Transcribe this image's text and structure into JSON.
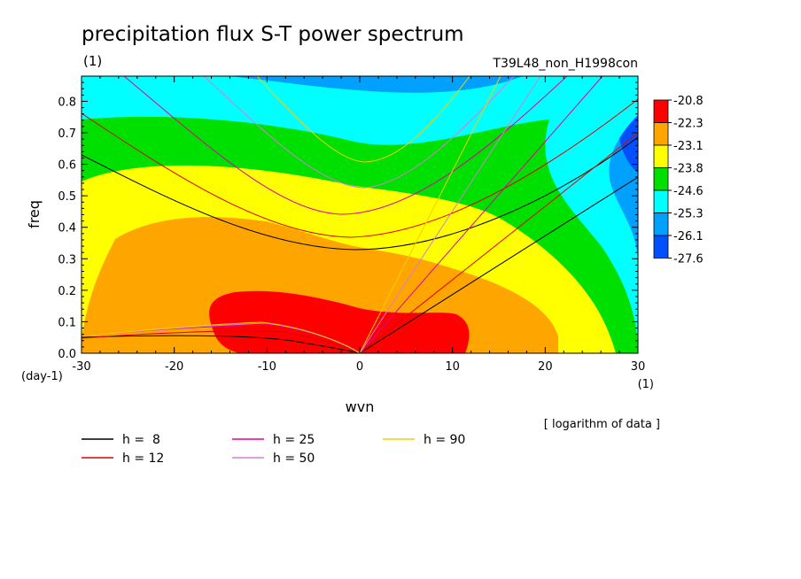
{
  "chart_data": {
    "type": "heatmap",
    "title": "precipitation flux S-T power spectrum",
    "units_left": "(1)",
    "experiment": "T39L48_non_H1998con",
    "xlabel": "wvn",
    "ylabel": "freq",
    "x_unit_label": "(1)",
    "y_unit_label": "(day-1)",
    "xlim": [
      -30,
      30
    ],
    "ylim": [
      0,
      0.88
    ],
    "xticks": [
      -30,
      -20,
      -10,
      0,
      10,
      20,
      30
    ],
    "xtick_labels": [
      "-30",
      "-20",
      "-10",
      "0",
      "10",
      "20",
      "30"
    ],
    "yticks": [
      0.0,
      0.1,
      0.2,
      0.3,
      0.4,
      0.5,
      0.6,
      0.7,
      0.8
    ],
    "ytick_labels": [
      "0.0",
      "0.1",
      "0.2",
      "0.3",
      "0.4",
      "0.5",
      "0.6",
      "0.7",
      "0.8"
    ],
    "colorbar": {
      "levels": [
        "-20.8",
        "-22.3",
        "-23.1",
        "-23.8",
        "-24.6",
        "-25.3",
        "-26.1",
        "-27.6"
      ],
      "colors": [
        "#ff0000",
        "#ffa500",
        "#ffff00",
        "#00e000",
        "#00ffff",
        "#00a0ff",
        "#0050ff"
      ]
    },
    "note": "[ logarithm of data ]",
    "legend": [
      {
        "label": "h =  8",
        "color": "#000000"
      },
      {
        "label": "h = 12",
        "color": "#e00000"
      },
      {
        "label": "h = 25",
        "color": "#e000a0"
      },
      {
        "label": "h = 50",
        "color": "#d080d0"
      },
      {
        "label": "h = 90",
        "color": "#f0d000"
      }
    ],
    "equivalent_depths": [
      8,
      12,
      25,
      50,
      90
    ]
  }
}
